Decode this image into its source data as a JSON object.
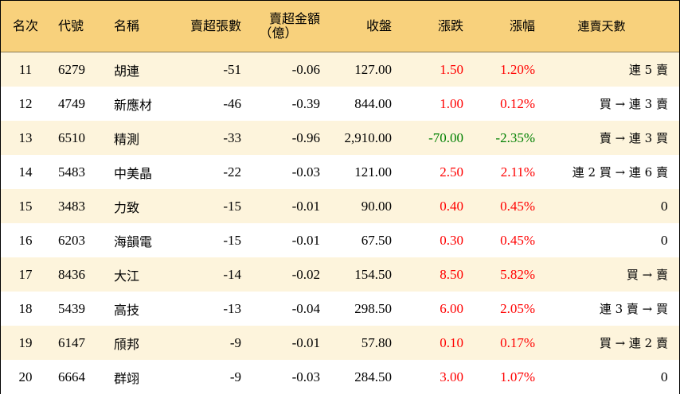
{
  "headers": {
    "rank": "名次",
    "code": "代號",
    "name": "名稱",
    "shares": "賣超張數",
    "amount_line1": "賣超金額",
    "amount_line2": "（億）",
    "close": "收盤",
    "change": "漲跌",
    "pct": "漲幅",
    "streak": "連賣天數"
  },
  "colors": {
    "header_bg": "#f8d17c",
    "row_alt_bg": "#fdf4dc",
    "up": "#ff0000",
    "down": "#008000"
  },
  "rows": [
    {
      "rank": "11",
      "code": "6279",
      "name": "胡連",
      "shares": "-51",
      "amount": "-0.06",
      "close": "127.00",
      "change": "1.50",
      "pct": "1.20%",
      "dir": "up",
      "streak": "連 5 賣"
    },
    {
      "rank": "12",
      "code": "4749",
      "name": "新應材",
      "shares": "-46",
      "amount": "-0.39",
      "close": "844.00",
      "change": "1.00",
      "pct": "0.12%",
      "dir": "up",
      "streak": "買 → 連 3 賣"
    },
    {
      "rank": "13",
      "code": "6510",
      "name": "精測",
      "shares": "-33",
      "amount": "-0.96",
      "close": "2,910.00",
      "change": "-70.00",
      "pct": "-2.35%",
      "dir": "down",
      "streak": "賣 → 連 3 買"
    },
    {
      "rank": "14",
      "code": "5483",
      "name": "中美晶",
      "shares": "-22",
      "amount": "-0.03",
      "close": "121.00",
      "change": "2.50",
      "pct": "2.11%",
      "dir": "up",
      "streak": "連 2 買 → 連 6 賣"
    },
    {
      "rank": "15",
      "code": "3483",
      "name": "力致",
      "shares": "-15",
      "amount": "-0.01",
      "close": "90.00",
      "change": "0.40",
      "pct": "0.45%",
      "dir": "up",
      "streak": "0"
    },
    {
      "rank": "16",
      "code": "6203",
      "name": "海韻電",
      "shares": "-15",
      "amount": "-0.01",
      "close": "67.50",
      "change": "0.30",
      "pct": "0.45%",
      "dir": "up",
      "streak": "0"
    },
    {
      "rank": "17",
      "code": "8436",
      "name": "大江",
      "shares": "-14",
      "amount": "-0.02",
      "close": "154.50",
      "change": "8.50",
      "pct": "5.82%",
      "dir": "up",
      "streak": "買 → 賣"
    },
    {
      "rank": "18",
      "code": "5439",
      "name": "高技",
      "shares": "-13",
      "amount": "-0.04",
      "close": "298.50",
      "change": "6.00",
      "pct": "2.05%",
      "dir": "up",
      "streak": "連 3 賣 → 買"
    },
    {
      "rank": "19",
      "code": "6147",
      "name": "頎邦",
      "shares": "-9",
      "amount": "-0.01",
      "close": "57.80",
      "change": "0.10",
      "pct": "0.17%",
      "dir": "up",
      "streak": "買 → 連 2 賣"
    },
    {
      "rank": "20",
      "code": "6664",
      "name": "群翊",
      "shares": "-9",
      "amount": "-0.03",
      "close": "284.50",
      "change": "3.00",
      "pct": "1.07%",
      "dir": "up",
      "streak": "0"
    }
  ]
}
